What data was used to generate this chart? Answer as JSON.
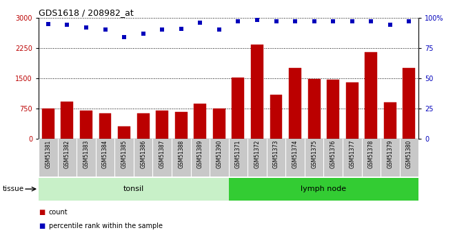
{
  "title": "GDS1618 / 208982_at",
  "categories": [
    "GSM51381",
    "GSM51382",
    "GSM51383",
    "GSM51384",
    "GSM51385",
    "GSM51386",
    "GSM51387",
    "GSM51388",
    "GSM51389",
    "GSM51390",
    "GSM51371",
    "GSM51372",
    "GSM51373",
    "GSM51374",
    "GSM51375",
    "GSM51376",
    "GSM51377",
    "GSM51378",
    "GSM51379",
    "GSM51380"
  ],
  "bar_values": [
    750,
    920,
    700,
    625,
    300,
    620,
    700,
    660,
    870,
    755,
    1510,
    2330,
    1080,
    1760,
    1480,
    1460,
    1390,
    2150,
    900,
    1760
  ],
  "percentile_values": [
    95,
    94,
    92,
    90,
    84,
    87,
    90,
    91,
    96,
    90,
    97,
    98,
    97,
    97,
    97,
    97,
    97,
    97,
    94,
    97
  ],
  "bar_color": "#bb0000",
  "marker_color": "#0000bb",
  "ylim_left": [
    0,
    3000
  ],
  "ylim_right": [
    0,
    100
  ],
  "yticks_left": [
    0,
    750,
    1500,
    2250,
    3000
  ],
  "yticks_right": [
    0,
    25,
    50,
    75,
    100
  ],
  "tissue_groups": [
    {
      "label": "tonsil",
      "start": 0,
      "end": 10,
      "color": "#c8f0c8"
    },
    {
      "label": "lymph node",
      "start": 10,
      "end": 20,
      "color": "#33cc33"
    }
  ],
  "tissue_label": "tissue",
  "legend_count": "count",
  "legend_percentile": "percentile rank within the sample",
  "tick_area_color": "#c8c8c8",
  "fig_width": 6.6,
  "fig_height": 3.45,
  "dpi": 100
}
